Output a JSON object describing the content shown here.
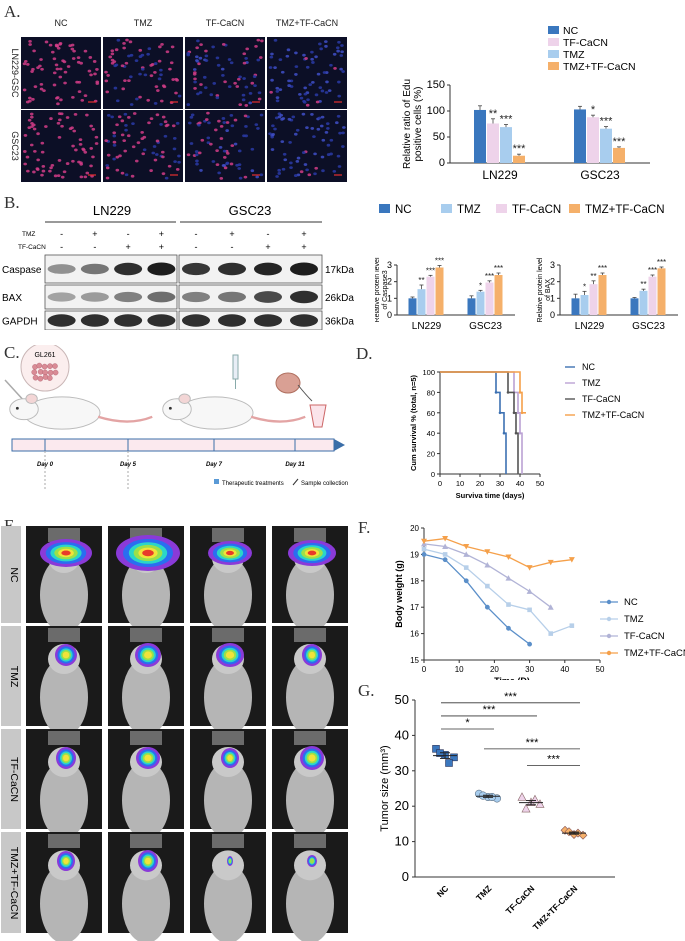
{
  "panels": {
    "A": "A.",
    "B": "B.",
    "C": "C.",
    "D": "D.",
    "E": "E.",
    "F": "F.",
    "G": "G."
  },
  "colors": {
    "nc": "#3a77be",
    "tmz": "#a8cdee",
    "tfcacn": "#eed3ea",
    "combo": "#f5b06a",
    "line_nc": "#5b8fc9",
    "line_tmz": "#b7cfe9",
    "line_tf": "#b1b3d6",
    "line_combo": "#f5a04a",
    "surv_nc": "#3d71b2",
    "surv_tmz": "#bba2d4",
    "surv_tf": "#555555",
    "surv_combo": "#f5a04a",
    "sig": "#333333",
    "timeline": "#3b6ea8"
  },
  "panelA": {
    "columns": [
      "NC",
      "TMZ",
      "TF-CaCN",
      "TMZ+TF-CaCN"
    ],
    "rows": [
      "LN229-GSC",
      "GSC23"
    ]
  },
  "panelB": {
    "group_labels": [
      "LN229",
      "GSC23"
    ],
    "row_labels": [
      "TMZ",
      "TF-CaCN"
    ],
    "tmz_signs": [
      "-",
      "+",
      "-",
      "+",
      "-",
      "+",
      "-",
      "+"
    ],
    "tf_signs": [
      "-",
      "-",
      "+",
      "+",
      "-",
      "-",
      "+",
      "+"
    ],
    "blot_labels": [
      "Caspase",
      "BAX",
      "GAPDH"
    ],
    "kda_labels": [
      "17kDa",
      "26kDa",
      "36kDa"
    ],
    "legend": [
      "NC",
      "TMZ",
      "TF-CaCN",
      "TMZ+TF-CaCN"
    ]
  },
  "panelC": {
    "cell_label": "GL261",
    "days": [
      "Day 0",
      "Day 5",
      "Day 7",
      "Day 31"
    ],
    "legend_treat": "Therapeutic treatments",
    "legend_sample": "Sample collection"
  },
  "panelE": {
    "row_labels": [
      "NC",
      "TMZ",
      "TF-CaCN",
      "TMZ+TF-CaCN"
    ]
  },
  "chart_data": [
    {
      "id": "A-bar",
      "type": "bar",
      "categories": [
        "LN229",
        "GSC23"
      ],
      "series": [
        {
          "name": "NC",
          "values": [
            102,
            103
          ],
          "err": [
            8,
            6
          ]
        },
        {
          "name": "TF-CaCN",
          "values": [
            76,
            88
          ],
          "err": [
            9,
            4
          ]
        },
        {
          "name": "TMZ",
          "values": [
            69,
            66
          ],
          "err": [
            5,
            4
          ]
        },
        {
          "name": "TMZ+TF-CaCN",
          "values": [
            14,
            29
          ],
          "err": [
            3,
            2
          ]
        }
      ],
      "sig": [
        [
          "",
          "**",
          "***",
          "***"
        ],
        [
          "",
          "*",
          "***",
          "***"
        ]
      ],
      "ylabel": "Relative ratio of Edu positive cells (%)",
      "ylim": [
        0,
        150
      ],
      "yticks": [
        0,
        50,
        100,
        150
      ]
    },
    {
      "id": "B-bar1",
      "type": "bar",
      "categories": [
        "LN229",
        "GSC23"
      ],
      "series": [
        {
          "name": "NC",
          "values": [
            1.0,
            1.0
          ],
          "err": [
            0.08,
            0.15
          ]
        },
        {
          "name": "TMZ",
          "values": [
            1.55,
            1.4
          ],
          "err": [
            0.25,
            0.08
          ]
        },
        {
          "name": "TF-CaCN",
          "values": [
            2.3,
            1.95
          ],
          "err": [
            0.08,
            0.1
          ]
        },
        {
          "name": "TMZ+TF-CaCN",
          "values": [
            2.85,
            2.4
          ],
          "err": [
            0.12,
            0.12
          ]
        }
      ],
      "sig": [
        [
          "",
          "**",
          "***",
          "***"
        ],
        [
          "",
          "*",
          "***",
          "***"
        ]
      ],
      "ylabel": "Relative protein level of Caspase3",
      "ylim": [
        0,
        3
      ],
      "yticks": [
        0,
        1,
        2,
        3
      ]
    },
    {
      "id": "B-bar2",
      "type": "bar",
      "categories": [
        "LN229",
        "GSC23"
      ],
      "series": [
        {
          "name": "NC",
          "values": [
            1.0,
            1.0
          ],
          "err": [
            0.25,
            0.05
          ]
        },
        {
          "name": "TMZ",
          "values": [
            1.2,
            1.45
          ],
          "err": [
            0.22,
            0.1
          ]
        },
        {
          "name": "TF-CaCN",
          "values": [
            1.85,
            2.3
          ],
          "err": [
            0.2,
            0.1
          ]
        },
        {
          "name": "TMZ+TF-CaCN",
          "values": [
            2.4,
            2.8
          ],
          "err": [
            0.12,
            0.08
          ]
        }
      ],
      "sig": [
        [
          "",
          "*",
          "**",
          "***"
        ],
        [
          "",
          "**",
          "***",
          "***"
        ]
      ],
      "ylabel": "Relative protein level of BAX",
      "ylim": [
        0,
        3
      ],
      "yticks": [
        0,
        1,
        2,
        3
      ]
    },
    {
      "id": "D-survival",
      "type": "line",
      "series": [
        {
          "name": "NC",
          "steps": [
            [
              0,
              100
            ],
            [
              28,
              100
            ],
            [
              28,
              80
            ],
            [
              30,
              80
            ],
            [
              30,
              60
            ],
            [
              32,
              60
            ],
            [
              32,
              40
            ],
            [
              33,
              40
            ],
            [
              33,
              0
            ]
          ]
        },
        {
          "name": "TMZ",
          "steps": [
            [
              0,
              100
            ],
            [
              37,
              100
            ],
            [
              37,
              80
            ],
            [
              39,
              80
            ],
            [
              39,
              60
            ],
            [
              40,
              60
            ],
            [
              40,
              40
            ],
            [
              41,
              40
            ],
            [
              41,
              0
            ]
          ]
        },
        {
          "name": "TF-CaCN",
          "steps": [
            [
              0,
              100
            ],
            [
              34,
              100
            ],
            [
              34,
              80
            ],
            [
              37,
              80
            ],
            [
              37,
              60
            ],
            [
              38,
              60
            ],
            [
              38,
              40
            ],
            [
              39,
              40
            ],
            [
              39,
              0
            ]
          ]
        },
        {
          "name": "TMZ+TF-CaCN",
          "steps": [
            [
              0,
              100
            ],
            [
              40,
              100
            ],
            [
              40,
              80
            ],
            [
              41,
              80
            ],
            [
              41,
              60
            ],
            [
              43,
              60
            ]
          ]
        }
      ],
      "xlabel": "Surviva time (days)",
      "ylabel": "Cum survival % (total, n=5)",
      "xlim": [
        0,
        50
      ],
      "ylim": [
        0,
        100
      ],
      "xticks": [
        0,
        10,
        20,
        30,
        40,
        50
      ],
      "yticks": [
        0,
        20,
        40,
        60,
        80,
        100
      ]
    },
    {
      "id": "F-weight",
      "type": "line",
      "series": [
        {
          "name": "NC",
          "x": [
            0,
            6,
            12,
            18,
            24,
            30
          ],
          "y": [
            19.0,
            18.8,
            18.0,
            17.0,
            16.2,
            15.6
          ]
        },
        {
          "name": "TMZ",
          "x": [
            0,
            6,
            12,
            18,
            24,
            30,
            36,
            42
          ],
          "y": [
            19.2,
            19.0,
            18.5,
            17.8,
            17.1,
            16.9,
            16.0,
            16.3
          ]
        },
        {
          "name": "TF-CaCN",
          "x": [
            0,
            6,
            12,
            18,
            24,
            30,
            36
          ],
          "y": [
            19.4,
            19.3,
            19.0,
            18.6,
            18.1,
            17.6,
            17.0
          ]
        },
        {
          "name": "TMZ+TF-CaCN",
          "x": [
            0,
            6,
            12,
            18,
            24,
            30,
            36,
            42
          ],
          "y": [
            19.5,
            19.6,
            19.3,
            19.1,
            18.9,
            18.5,
            18.7,
            18.8
          ]
        }
      ],
      "xlabel": "Time (D)",
      "ylabel": "Body weight (g)",
      "xlim": [
        0,
        50
      ],
      "ylim": [
        15,
        20
      ],
      "xticks": [
        0,
        10,
        20,
        30,
        40,
        50
      ],
      "yticks": [
        15,
        16,
        17,
        18,
        19,
        20
      ]
    },
    {
      "id": "G-scatter",
      "type": "scatter",
      "categories": [
        "NC",
        "TMZ",
        "TF-CaCN",
        "TMZ+TF-CaCN"
      ],
      "points": [
        [
          36.2,
          34.5,
          33.8,
          35.0,
          32.2
        ],
        [
          23.5,
          22.6,
          22.2,
          23.0,
          22.6
        ],
        [
          22.5,
          21.0,
          20.5,
          19.2,
          21.8
        ],
        [
          13.2,
          12.0,
          11.8,
          12.8,
          12.4
        ]
      ],
      "means": [
        34.3,
        22.8,
        21.0,
        12.4
      ],
      "sems": [
        0.8,
        0.3,
        0.6,
        0.3
      ],
      "comparisons": [
        {
          "from": 0,
          "to": 3,
          "label": "***"
        },
        {
          "from": 0,
          "to": 2,
          "label": "***"
        },
        {
          "from": 0,
          "to": 1,
          "label": "*"
        },
        {
          "from": 1,
          "to": 3,
          "label": "***"
        },
        {
          "from": 2,
          "to": 3,
          "label": "***"
        }
      ],
      "ylabel": "Tumor size (mm³)",
      "ylim": [
        0,
        50
      ],
      "yticks": [
        0,
        10,
        20,
        30,
        40,
        50
      ]
    }
  ]
}
